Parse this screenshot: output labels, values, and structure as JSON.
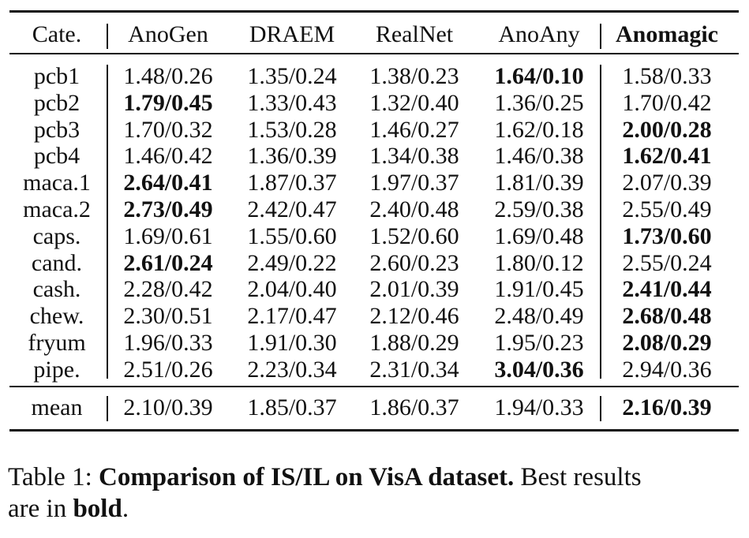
{
  "table": {
    "header": {
      "cells": [
        "Cate.",
        "AnoGen",
        "DRAEM",
        "RealNet",
        "AnoAny",
        "Anomagic"
      ],
      "bold": 5
    },
    "rows": [
      {
        "cells": [
          "pcb1",
          "1.48/0.26",
          "1.35/0.24",
          "1.38/0.23",
          "1.64/0.10",
          "1.58/0.33"
        ],
        "bold": 4
      },
      {
        "cells": [
          "pcb2",
          "1.79/0.45",
          "1.33/0.43",
          "1.32/0.40",
          "1.36/0.25",
          "1.70/0.42"
        ],
        "bold": 1
      },
      {
        "cells": [
          "pcb3",
          "1.70/0.32",
          "1.53/0.28",
          "1.46/0.27",
          "1.62/0.18",
          "2.00/0.28"
        ],
        "bold": 5
      },
      {
        "cells": [
          "pcb4",
          "1.46/0.42",
          "1.36/0.39",
          "1.34/0.38",
          "1.46/0.38",
          "1.62/0.41"
        ],
        "bold": 5
      },
      {
        "cells": [
          "maca.1",
          "2.64/0.41",
          "1.87/0.37",
          "1.97/0.37",
          "1.81/0.39",
          "2.07/0.39"
        ],
        "bold": 1
      },
      {
        "cells": [
          "maca.2",
          "2.73/0.49",
          "2.42/0.47",
          "2.40/0.48",
          "2.59/0.38",
          "2.55/0.49"
        ],
        "bold": 1
      },
      {
        "cells": [
          "caps.",
          "1.69/0.61",
          "1.55/0.60",
          "1.52/0.60",
          "1.69/0.48",
          "1.73/0.60"
        ],
        "bold": 5
      },
      {
        "cells": [
          "cand.",
          "2.61/0.24",
          "2.49/0.22",
          "2.60/0.23",
          "1.80/0.12",
          "2.55/0.24"
        ],
        "bold": 1
      },
      {
        "cells": [
          "cash.",
          "2.28/0.42",
          "2.04/0.40",
          "2.01/0.39",
          "1.91/0.45",
          "2.41/0.44"
        ],
        "bold": 5
      },
      {
        "cells": [
          "chew.",
          "2.30/0.51",
          "2.17/0.47",
          "2.12/0.46",
          "2.48/0.49",
          "2.68/0.48"
        ],
        "bold": 5
      },
      {
        "cells": [
          "fryum",
          "1.96/0.33",
          "1.91/0.30",
          "1.88/0.29",
          "1.95/0.23",
          "2.08/0.29"
        ],
        "bold": 5
      },
      {
        "cells": [
          "pipe.",
          "2.51/0.26",
          "2.23/0.34",
          "2.31/0.34",
          "3.04/0.36",
          "2.94/0.36"
        ],
        "bold": 4
      }
    ],
    "mean": {
      "cells": [
        "mean",
        "2.10/0.39",
        "1.85/0.37",
        "1.86/0.37",
        "1.94/0.33",
        "2.16/0.39"
      ],
      "bold": 5
    }
  },
  "caption": {
    "label": "Table 1:",
    "title": "Comparison of IS/IL on VisA dataset.",
    "text_line1": "Best results",
    "text_line2": "are in",
    "bold_word": "bold",
    "end": "."
  }
}
